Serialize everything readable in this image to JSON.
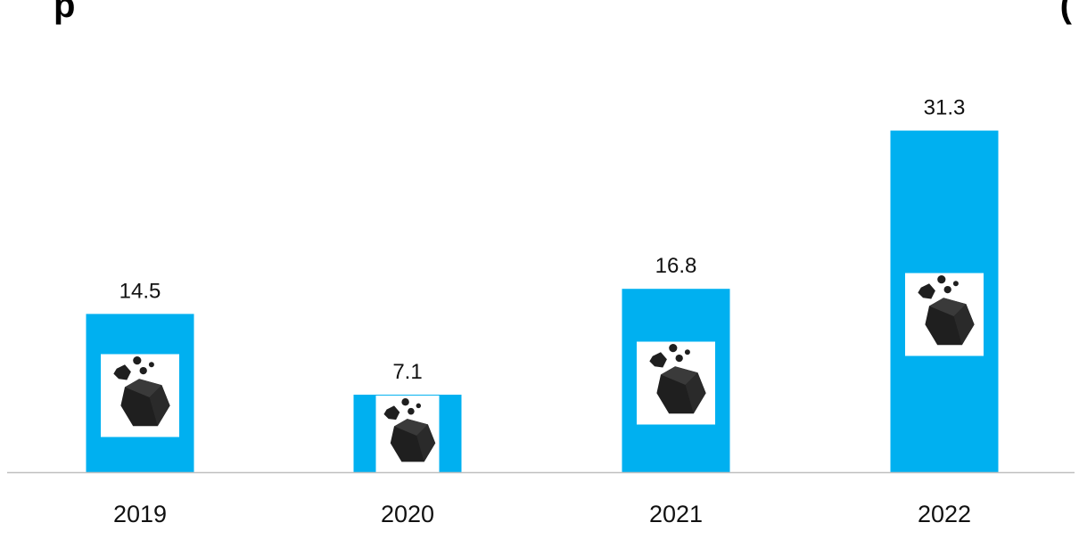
{
  "chart_data": {
    "type": "bar",
    "title": "",
    "xlabel": "",
    "ylabel": "",
    "categories": [
      "2019",
      "2020",
      "2021",
      "2022"
    ],
    "values": [
      14.5,
      7.1,
      16.8,
      31.3
    ],
    "data_labels": [
      "14.5",
      "7.1",
      "16.8",
      "31.3"
    ],
    "grid": false,
    "legend": "none",
    "bar_icon": "coal-icon"
  },
  "colors": {
    "bar": "#00b0f0",
    "icon_box": "#ffffff",
    "icon": "#1f1f1f",
    "axis": "#bfbfbf"
  }
}
